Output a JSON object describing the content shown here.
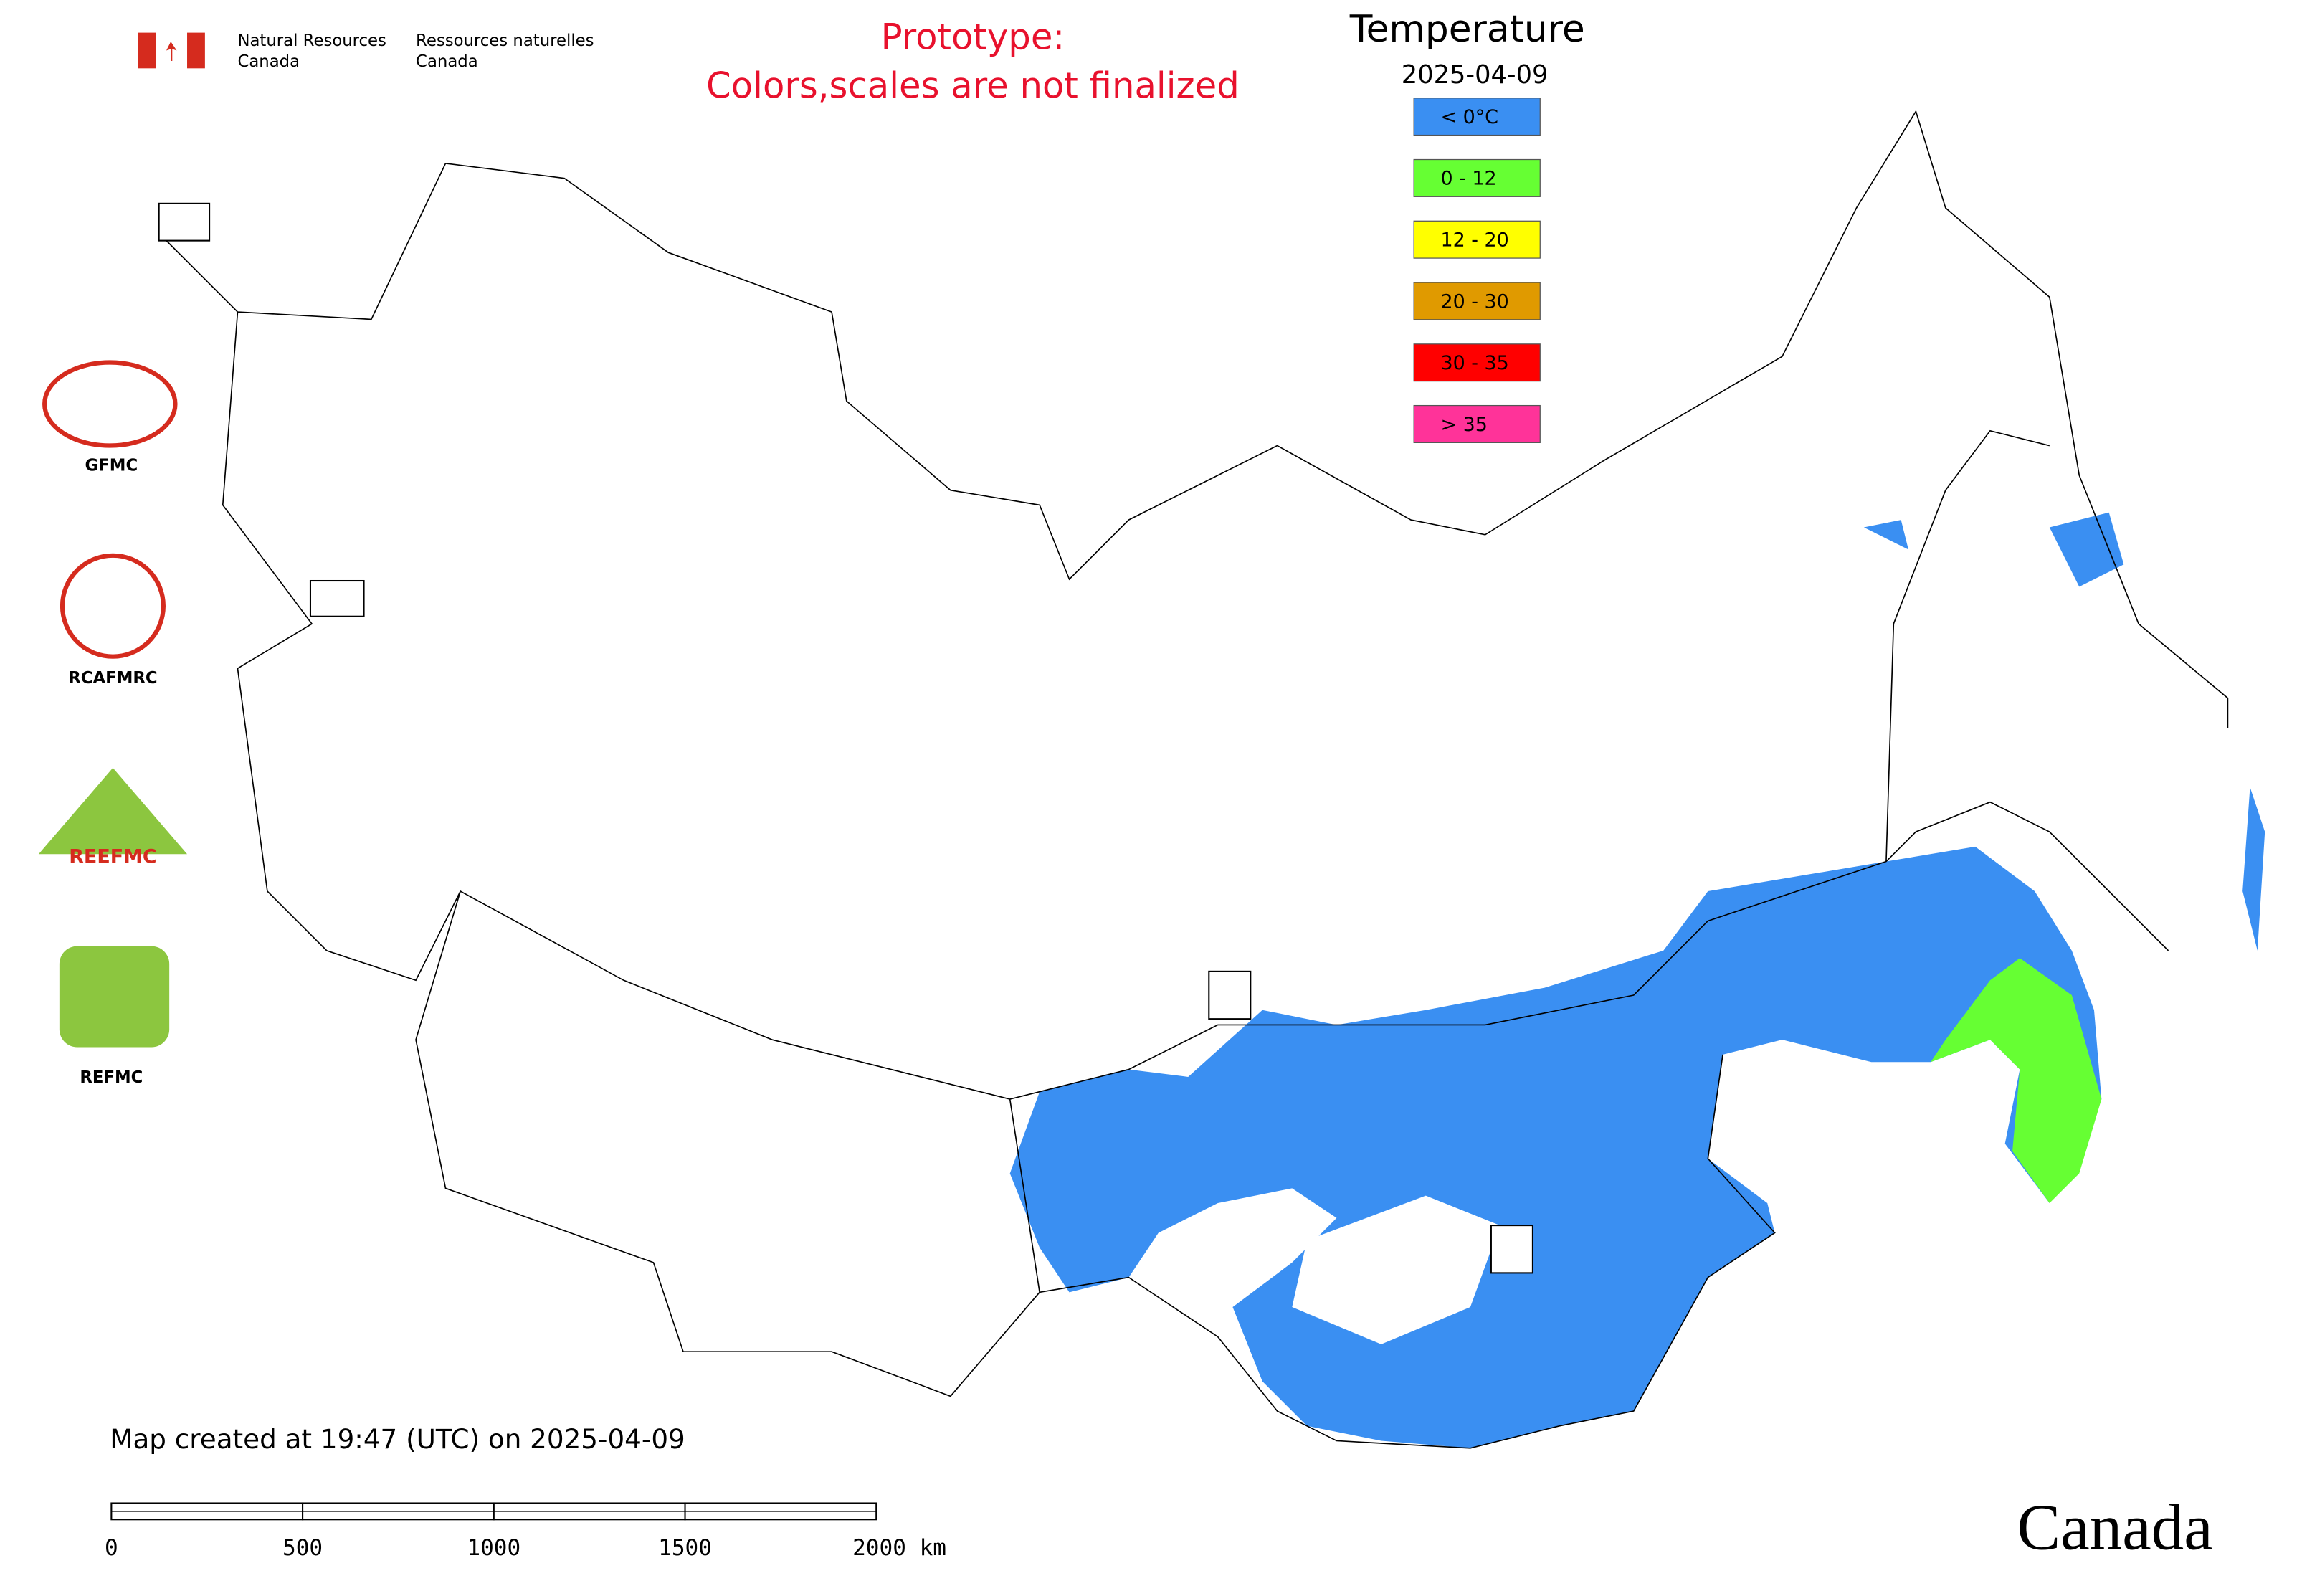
{
  "header": {
    "agency_en_1": "Natural Resources",
    "agency_en_2": "Canada",
    "agency_fr_1": "Ressources naturelles",
    "agency_fr_2": "Canada"
  },
  "notice": {
    "line1": "Prototype:",
    "line2": "Colors,scales are not finalized"
  },
  "legend": {
    "title": "Temperature",
    "date": "2025-04-09",
    "items": [
      {
        "label": "< 0°C",
        "color": "#3a8ff2"
      },
      {
        "label": "0 - 12",
        "color": "#66ff33"
      },
      {
        "label": "12 - 20",
        "color": "#ffff00"
      },
      {
        "label": "20 - 30",
        "color": "#e09a00"
      },
      {
        "label": "30 - 35",
        "color": "#ff0000"
      },
      {
        "label": "> 35",
        "color": "#ff3399"
      }
    ]
  },
  "logos": [
    "GFMC",
    "RCAFMRC",
    "REEFMC",
    "REFMC"
  ],
  "footer": {
    "created": "Map created at 19:47 (UTC) on 2025-04-09",
    "wordmark": "Canada"
  },
  "scale_bar": {
    "labels": [
      "0",
      "500",
      "1000",
      "1500",
      "2000 km"
    ]
  }
}
